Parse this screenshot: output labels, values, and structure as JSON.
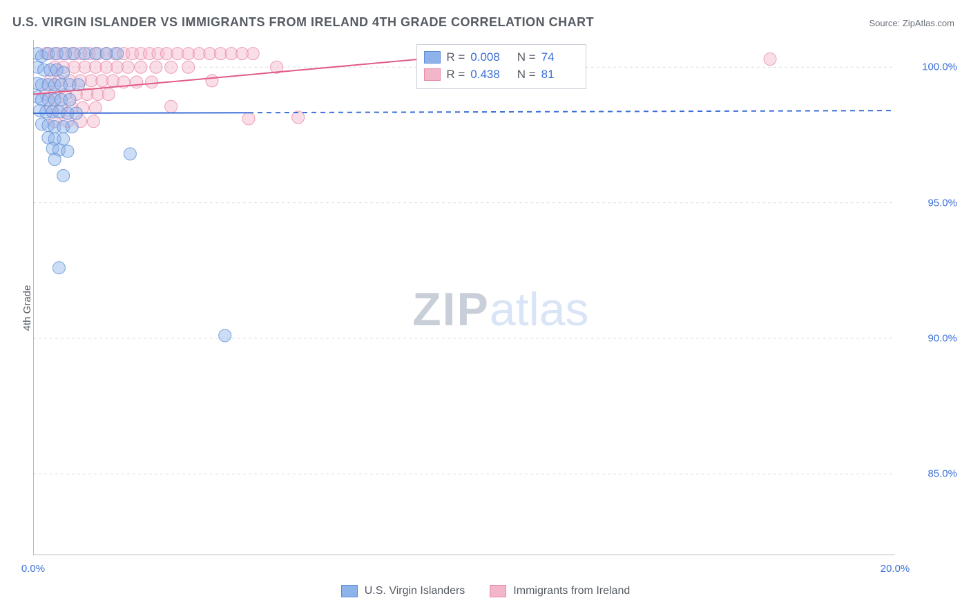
{
  "title": "U.S. VIRGIN ISLANDER VS IMMIGRANTS FROM IRELAND 4TH GRADE CORRELATION CHART",
  "source_prefix": "Source: ",
  "source_name": "ZipAtlas.com",
  "ylabel": "4th Grade",
  "watermark_part1": "ZIP",
  "watermark_part2": "atlas",
  "chart": {
    "type": "scatter",
    "background_color": "#ffffff",
    "grid_color": "#d8dde4",
    "axis_color": "#888f98",
    "xlim": [
      0,
      20
    ],
    "ylim": [
      82,
      101
    ],
    "x_ticks": [
      0,
      1.7,
      3.4,
      5.1,
      6.8,
      8.5,
      10.2,
      11.9,
      13.6,
      15.3,
      17.0,
      18.7,
      20.0
    ],
    "x_tick_labels_shown": [
      {
        "v": 0,
        "t": "0.0%"
      },
      {
        "v": 20,
        "t": "20.0%"
      }
    ],
    "y_gridlines": [
      85,
      90,
      95,
      100
    ],
    "y_tick_labels": [
      {
        "v": 85,
        "t": "85.0%"
      },
      {
        "v": 90,
        "t": "90.0%"
      },
      {
        "v": 95,
        "t": "95.0%"
      },
      {
        "v": 100,
        "t": "100.0%"
      }
    ],
    "marker_radius": 9,
    "marker_opacity": 0.45,
    "line_width": 2,
    "series": [
      {
        "name": "U.S. Virgin Islanders",
        "color_fill": "#8db3ea",
        "color_stroke": "#5b8dd6",
        "line_color": "#3b6fd8",
        "R": "0.008",
        "N": "74",
        "trend": {
          "x1": 0,
          "y1": 98.3,
          "x2": 5,
          "y2": 98.32,
          "dash_x2": 20,
          "dash_y2": 98.4
        },
        "points": [
          [
            0.1,
            100.5
          ],
          [
            0.2,
            100.4
          ],
          [
            0.35,
            100.5
          ],
          [
            0.55,
            100.5
          ],
          [
            0.75,
            100.5
          ],
          [
            0.95,
            100.5
          ],
          [
            1.2,
            100.5
          ],
          [
            1.45,
            100.5
          ],
          [
            1.7,
            100.5
          ],
          [
            1.95,
            100.5
          ],
          [
            0.1,
            100.0
          ],
          [
            0.25,
            99.9
          ],
          [
            0.4,
            99.9
          ],
          [
            0.55,
            99.9
          ],
          [
            0.7,
            99.8
          ],
          [
            0.1,
            99.4
          ],
          [
            0.2,
            99.35
          ],
          [
            0.35,
            99.35
          ],
          [
            0.5,
            99.35
          ],
          [
            0.65,
            99.35
          ],
          [
            0.85,
            99.35
          ],
          [
            1.05,
            99.35
          ],
          [
            0.1,
            98.9
          ],
          [
            0.2,
            98.8
          ],
          [
            0.35,
            98.8
          ],
          [
            0.5,
            98.8
          ],
          [
            0.65,
            98.8
          ],
          [
            0.85,
            98.8
          ],
          [
            0.15,
            98.4
          ],
          [
            0.3,
            98.35
          ],
          [
            0.45,
            98.35
          ],
          [
            0.6,
            98.35
          ],
          [
            0.8,
            98.3
          ],
          [
            1.0,
            98.3
          ],
          [
            0.2,
            97.9
          ],
          [
            0.35,
            97.85
          ],
          [
            0.5,
            97.8
          ],
          [
            0.7,
            97.8
          ],
          [
            0.9,
            97.8
          ],
          [
            0.35,
            97.4
          ],
          [
            0.5,
            97.35
          ],
          [
            0.7,
            97.35
          ],
          [
            0.45,
            97.0
          ],
          [
            0.6,
            96.95
          ],
          [
            0.8,
            96.9
          ],
          [
            0.5,
            96.6
          ],
          [
            2.25,
            96.8
          ],
          [
            0.7,
            96.0
          ],
          [
            0.6,
            92.6
          ],
          [
            4.45,
            90.1
          ]
        ]
      },
      {
        "name": "Immigrants from Ireland",
        "color_fill": "#f3b6c9",
        "color_stroke": "#e889a8",
        "line_color": "#e05b86",
        "R": "0.438",
        "N": "81",
        "trend": {
          "x1": 0,
          "y1": 99.0,
          "x2": 10.4,
          "y2": 100.5,
          "dash_x2": null,
          "dash_y2": null
        },
        "points": [
          [
            0.3,
            100.5
          ],
          [
            0.5,
            100.5
          ],
          [
            0.7,
            100.5
          ],
          [
            0.9,
            100.5
          ],
          [
            1.1,
            100.5
          ],
          [
            1.3,
            100.5
          ],
          [
            1.5,
            100.5
          ],
          [
            1.7,
            100.5
          ],
          [
            1.9,
            100.5
          ],
          [
            2.1,
            100.5
          ],
          [
            2.3,
            100.5
          ],
          [
            2.5,
            100.5
          ],
          [
            2.7,
            100.5
          ],
          [
            2.9,
            100.5
          ],
          [
            3.1,
            100.5
          ],
          [
            3.35,
            100.5
          ],
          [
            3.6,
            100.5
          ],
          [
            3.85,
            100.5
          ],
          [
            4.1,
            100.5
          ],
          [
            4.35,
            100.5
          ],
          [
            4.6,
            100.5
          ],
          [
            4.85,
            100.5
          ],
          [
            5.1,
            100.5
          ],
          [
            0.5,
            100.0
          ],
          [
            0.7,
            100.0
          ],
          [
            0.95,
            100.0
          ],
          [
            1.2,
            100.0
          ],
          [
            1.45,
            100.0
          ],
          [
            1.7,
            100.0
          ],
          [
            1.95,
            100.0
          ],
          [
            2.2,
            100.0
          ],
          [
            2.5,
            100.0
          ],
          [
            2.85,
            100.0
          ],
          [
            3.2,
            100.0
          ],
          [
            3.6,
            100.0
          ],
          [
            5.65,
            100.0
          ],
          [
            0.4,
            99.5
          ],
          [
            0.6,
            99.5
          ],
          [
            0.85,
            99.5
          ],
          [
            1.1,
            99.5
          ],
          [
            1.35,
            99.5
          ],
          [
            1.6,
            99.5
          ],
          [
            1.85,
            99.5
          ],
          [
            2.1,
            99.45
          ],
          [
            2.4,
            99.45
          ],
          [
            2.75,
            99.45
          ],
          [
            4.15,
            99.5
          ],
          [
            0.3,
            99.0
          ],
          [
            0.5,
            99.0
          ],
          [
            0.75,
            99.0
          ],
          [
            1.0,
            99.0
          ],
          [
            1.25,
            99.0
          ],
          [
            1.5,
            99.0
          ],
          [
            1.75,
            99.0
          ],
          [
            0.4,
            98.5
          ],
          [
            0.65,
            98.5
          ],
          [
            0.9,
            98.5
          ],
          [
            1.15,
            98.5
          ],
          [
            1.45,
            98.5
          ],
          [
            3.2,
            98.55
          ],
          [
            0.5,
            98.0
          ],
          [
            0.8,
            98.0
          ],
          [
            1.1,
            98.0
          ],
          [
            1.4,
            98.0
          ],
          [
            5.0,
            98.1
          ],
          [
            6.15,
            98.15
          ],
          [
            10.4,
            100.3
          ],
          [
            17.1,
            100.3
          ]
        ]
      }
    ]
  },
  "stats_labels": {
    "R": "R",
    "N": "N",
    "eq": "="
  },
  "legend": [
    {
      "label": "U.S. Virgin Islanders",
      "fill": "#8db3ea",
      "stroke": "#5b8dd6"
    },
    {
      "label": "Immigrants from Ireland",
      "fill": "#f3b6c9",
      "stroke": "#e889a8"
    }
  ]
}
